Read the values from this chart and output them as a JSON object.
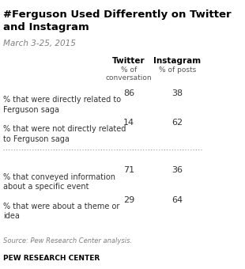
{
  "title": "#Ferguson Used Differently on Twitter\nand Instagram",
  "subtitle": "March 3-25, 2015",
  "col1_header": "Twitter",
  "col1_subheader": "% of\nconversation",
  "col2_header": "Instagram",
  "col2_subheader": "% of posts",
  "rows": [
    {
      "label": "% that were directly related to\nFerguson saga",
      "twitter": "86",
      "instagram": "38"
    },
    {
      "label": "% that were not directly related\nto Ferguson saga",
      "twitter": "14",
      "instagram": "62"
    },
    {
      "label": "% that conveyed information\nabout a specific event",
      "twitter": "71",
      "instagram": "36"
    },
    {
      "label": "% that were about a theme or\nidea",
      "twitter": "29",
      "instagram": "64"
    }
  ],
  "source": "Source: Pew Research Center analysis.",
  "footer": "PEW RESEARCH CENTER",
  "title_color": "#000000",
  "subtitle_color": "#808080",
  "header_color": "#000000",
  "subheader_color": "#555555",
  "label_color": "#333333",
  "value_color": "#333333",
  "source_color": "#808080",
  "footer_color": "#000000",
  "bg_color": "#ffffff",
  "separator_color": "#999999"
}
